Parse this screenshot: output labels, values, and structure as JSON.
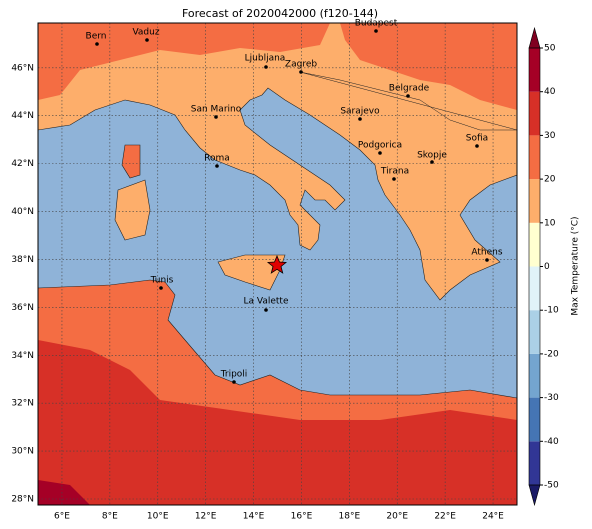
{
  "title": "Forecast of 2020042000 (f120-144)",
  "map": {
    "lon_range": [
      5,
      25
    ],
    "lat_range": [
      27.75,
      47.87
    ],
    "xticks": [
      {
        "value": 6,
        "label": "6°E"
      },
      {
        "value": 8,
        "label": "8°E"
      },
      {
        "value": 10,
        "label": "10°E"
      },
      {
        "value": 12,
        "label": "12°E"
      },
      {
        "value": 14,
        "label": "14°E"
      },
      {
        "value": 16,
        "label": "16°E"
      },
      {
        "value": 18,
        "label": "18°E"
      },
      {
        "value": 20,
        "label": "20°E"
      },
      {
        "value": 22,
        "label": "22°E"
      },
      {
        "value": 24,
        "label": "24°E"
      }
    ],
    "yticks": [
      {
        "value": 28,
        "label": "28°N"
      },
      {
        "value": 30,
        "label": "30°N"
      },
      {
        "value": 32,
        "label": "32°N"
      },
      {
        "value": 34,
        "label": "34°N"
      },
      {
        "value": 36,
        "label": "36°N"
      },
      {
        "value": 38,
        "label": "38°N"
      },
      {
        "value": 40,
        "label": "40°N"
      },
      {
        "value": 42,
        "label": "42°N"
      },
      {
        "value": 44,
        "label": "44°N"
      },
      {
        "value": 46,
        "label": "46°N"
      }
    ],
    "cities": [
      "Bern",
      "Vaduz",
      "Budapest",
      "Ljubljana",
      "Zagreb",
      "Belgrade",
      "San Marino",
      "Sarajevo",
      "Sofia",
      "Podgorica",
      "Skopje",
      "Roma",
      "Tirana",
      "Athens",
      "Tunis",
      "La Valette",
      "Tripoli"
    ]
  },
  "colorbar": {
    "label": "Max Temperature (°C)",
    "ticks": [
      -50,
      -40,
      -30,
      -20,
      -10,
      0,
      10,
      20,
      30,
      40,
      50
    ],
    "colors": [
      "#313695",
      "#4575b4",
      "#74a5cf",
      "#abd0e6",
      "#e0f3f8",
      "#ffffd0",
      "#fdae6b",
      "#f46d43",
      "#d73027",
      "#a50026"
    ],
    "under_color": "#1a1a66",
    "over_color": "#800020"
  }
}
